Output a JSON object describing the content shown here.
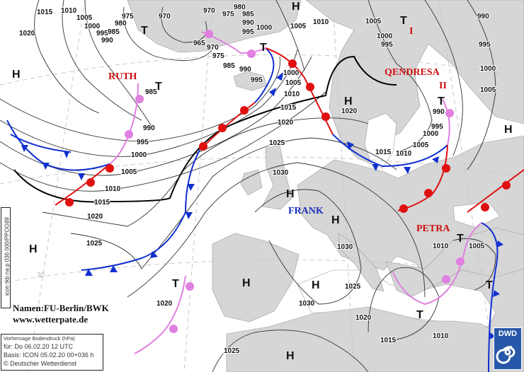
{
  "map": {
    "type": "surface pressure analysis/forecast",
    "colors": {
      "land": "#d6d6d6",
      "sea": "#ffffff",
      "cold_front": "#1030d0",
      "warm_front": "#e01010",
      "occlusion": "#e080e0",
      "name_low": "#cc1010",
      "name_high": "#1a2fb8"
    },
    "isobar_labels": [
      "1015",
      "1010",
      "1005",
      "1000",
      "995",
      "990",
      "980",
      "985",
      "975",
      "970",
      "970",
      "975",
      "980",
      "985",
      "990",
      "995",
      "1000",
      "1005",
      "1010",
      "1005",
      "1000",
      "995",
      "990",
      "995",
      "1000",
      "1005",
      "1020",
      "965",
      "970",
      "975",
      "985",
      "990",
      "995",
      "1000",
      "1005",
      "1010",
      "1015",
      "1020",
      "1025",
      "1030",
      "985",
      "990",
      "995",
      "1000",
      "1005",
      "1010",
      "1015",
      "1020",
      "1025",
      "1020",
      "1015",
      "1010",
      "1005",
      "1000",
      "995",
      "990",
      "1030",
      "1025",
      "1030",
      "1020",
      "1020",
      "1010",
      "1015",
      "1025",
      "1010",
      "1005",
      "30"
    ],
    "pressure_centers": [
      "H",
      "T",
      "H",
      "T",
      "T",
      "T",
      "H",
      "T",
      "H",
      "H",
      "H",
      "H",
      "T",
      "H",
      "T",
      "H",
      "T",
      "T",
      "H"
    ],
    "system_names": {
      "ruth": "RUTH",
      "qendresa1": "QENDRESA",
      "qendresa1_num": "I",
      "qendresa2": "QENDRESA",
      "qendresa2_num": "II",
      "frank": "FRANK",
      "petra": "PETRA"
    }
  },
  "credit": {
    "line1": "Namen:FU-Berlin/BWK",
    "line2": "www.wetterpate.de"
  },
  "info": {
    "title": "Vorhersage Bodendruck (hPa)",
    "valid": "für:  Do 06.02.20  12 UTC",
    "basis": "Basis: ICON  05.02.20 00+036 h",
    "copyright": "© Deutscher Wetterdienst"
  },
  "product_code": "icon tkb na p 036 000/PPOG89",
  "logo": {
    "text": "DWD",
    "icon": "dwd-swirl-icon"
  }
}
